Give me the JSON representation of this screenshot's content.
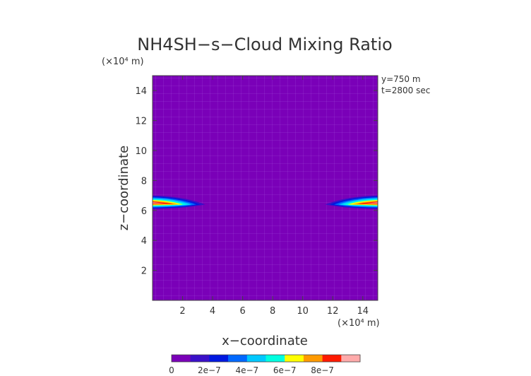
{
  "chart_data": {
    "type": "heatmap",
    "title": "NH4SH−s−Cloud Mixing Ratio",
    "xlabel": "x−coordinate",
    "ylabel": "z−coordinate",
    "x_unit": "(×10⁴ m)",
    "z_unit": "(×10⁴ m)",
    "annotations": [
      "y=750  m",
      "t=2800 sec"
    ],
    "xlim": [
      0,
      15
    ],
    "ylim": [
      0,
      15
    ],
    "x_ticks": [
      2,
      4,
      6,
      8,
      10,
      12,
      14
    ],
    "z_ticks": [
      2,
      4,
      6,
      8,
      10,
      12,
      14
    ],
    "x_tick_labels": [
      "2",
      "4",
      "6",
      "8",
      "10",
      "12",
      "14"
    ],
    "z_tick_labels": [
      "2",
      "4",
      "6",
      "8",
      "10",
      "12",
      "14"
    ],
    "background_value": 0,
    "features": [
      {
        "name": "left cloud layer",
        "x_range": [
          0,
          3.5
        ],
        "z_center": 6.5,
        "peak": 9e-07
      },
      {
        "name": "right cloud layer",
        "x_range": [
          11.5,
          15
        ],
        "z_center": 6.5,
        "peak": 9e-07
      }
    ],
    "colorbar": {
      "tick_labels": [
        "0",
        "2e−7",
        "4e−7",
        "6e−7",
        "8e−7"
      ],
      "levels": [
        0,
        1e-07,
        2e-07,
        3e-07,
        4e-07,
        5e-07,
        6e-07,
        7e-07,
        8e-07,
        9e-07
      ],
      "colors": [
        "#7a00b8",
        "#3a10c8",
        "#0018e0",
        "#0068ff",
        "#00c8ff",
        "#00ffe0",
        "#ffff00",
        "#ff9a00",
        "#ff1a00",
        "#ffaaaa"
      ]
    }
  }
}
